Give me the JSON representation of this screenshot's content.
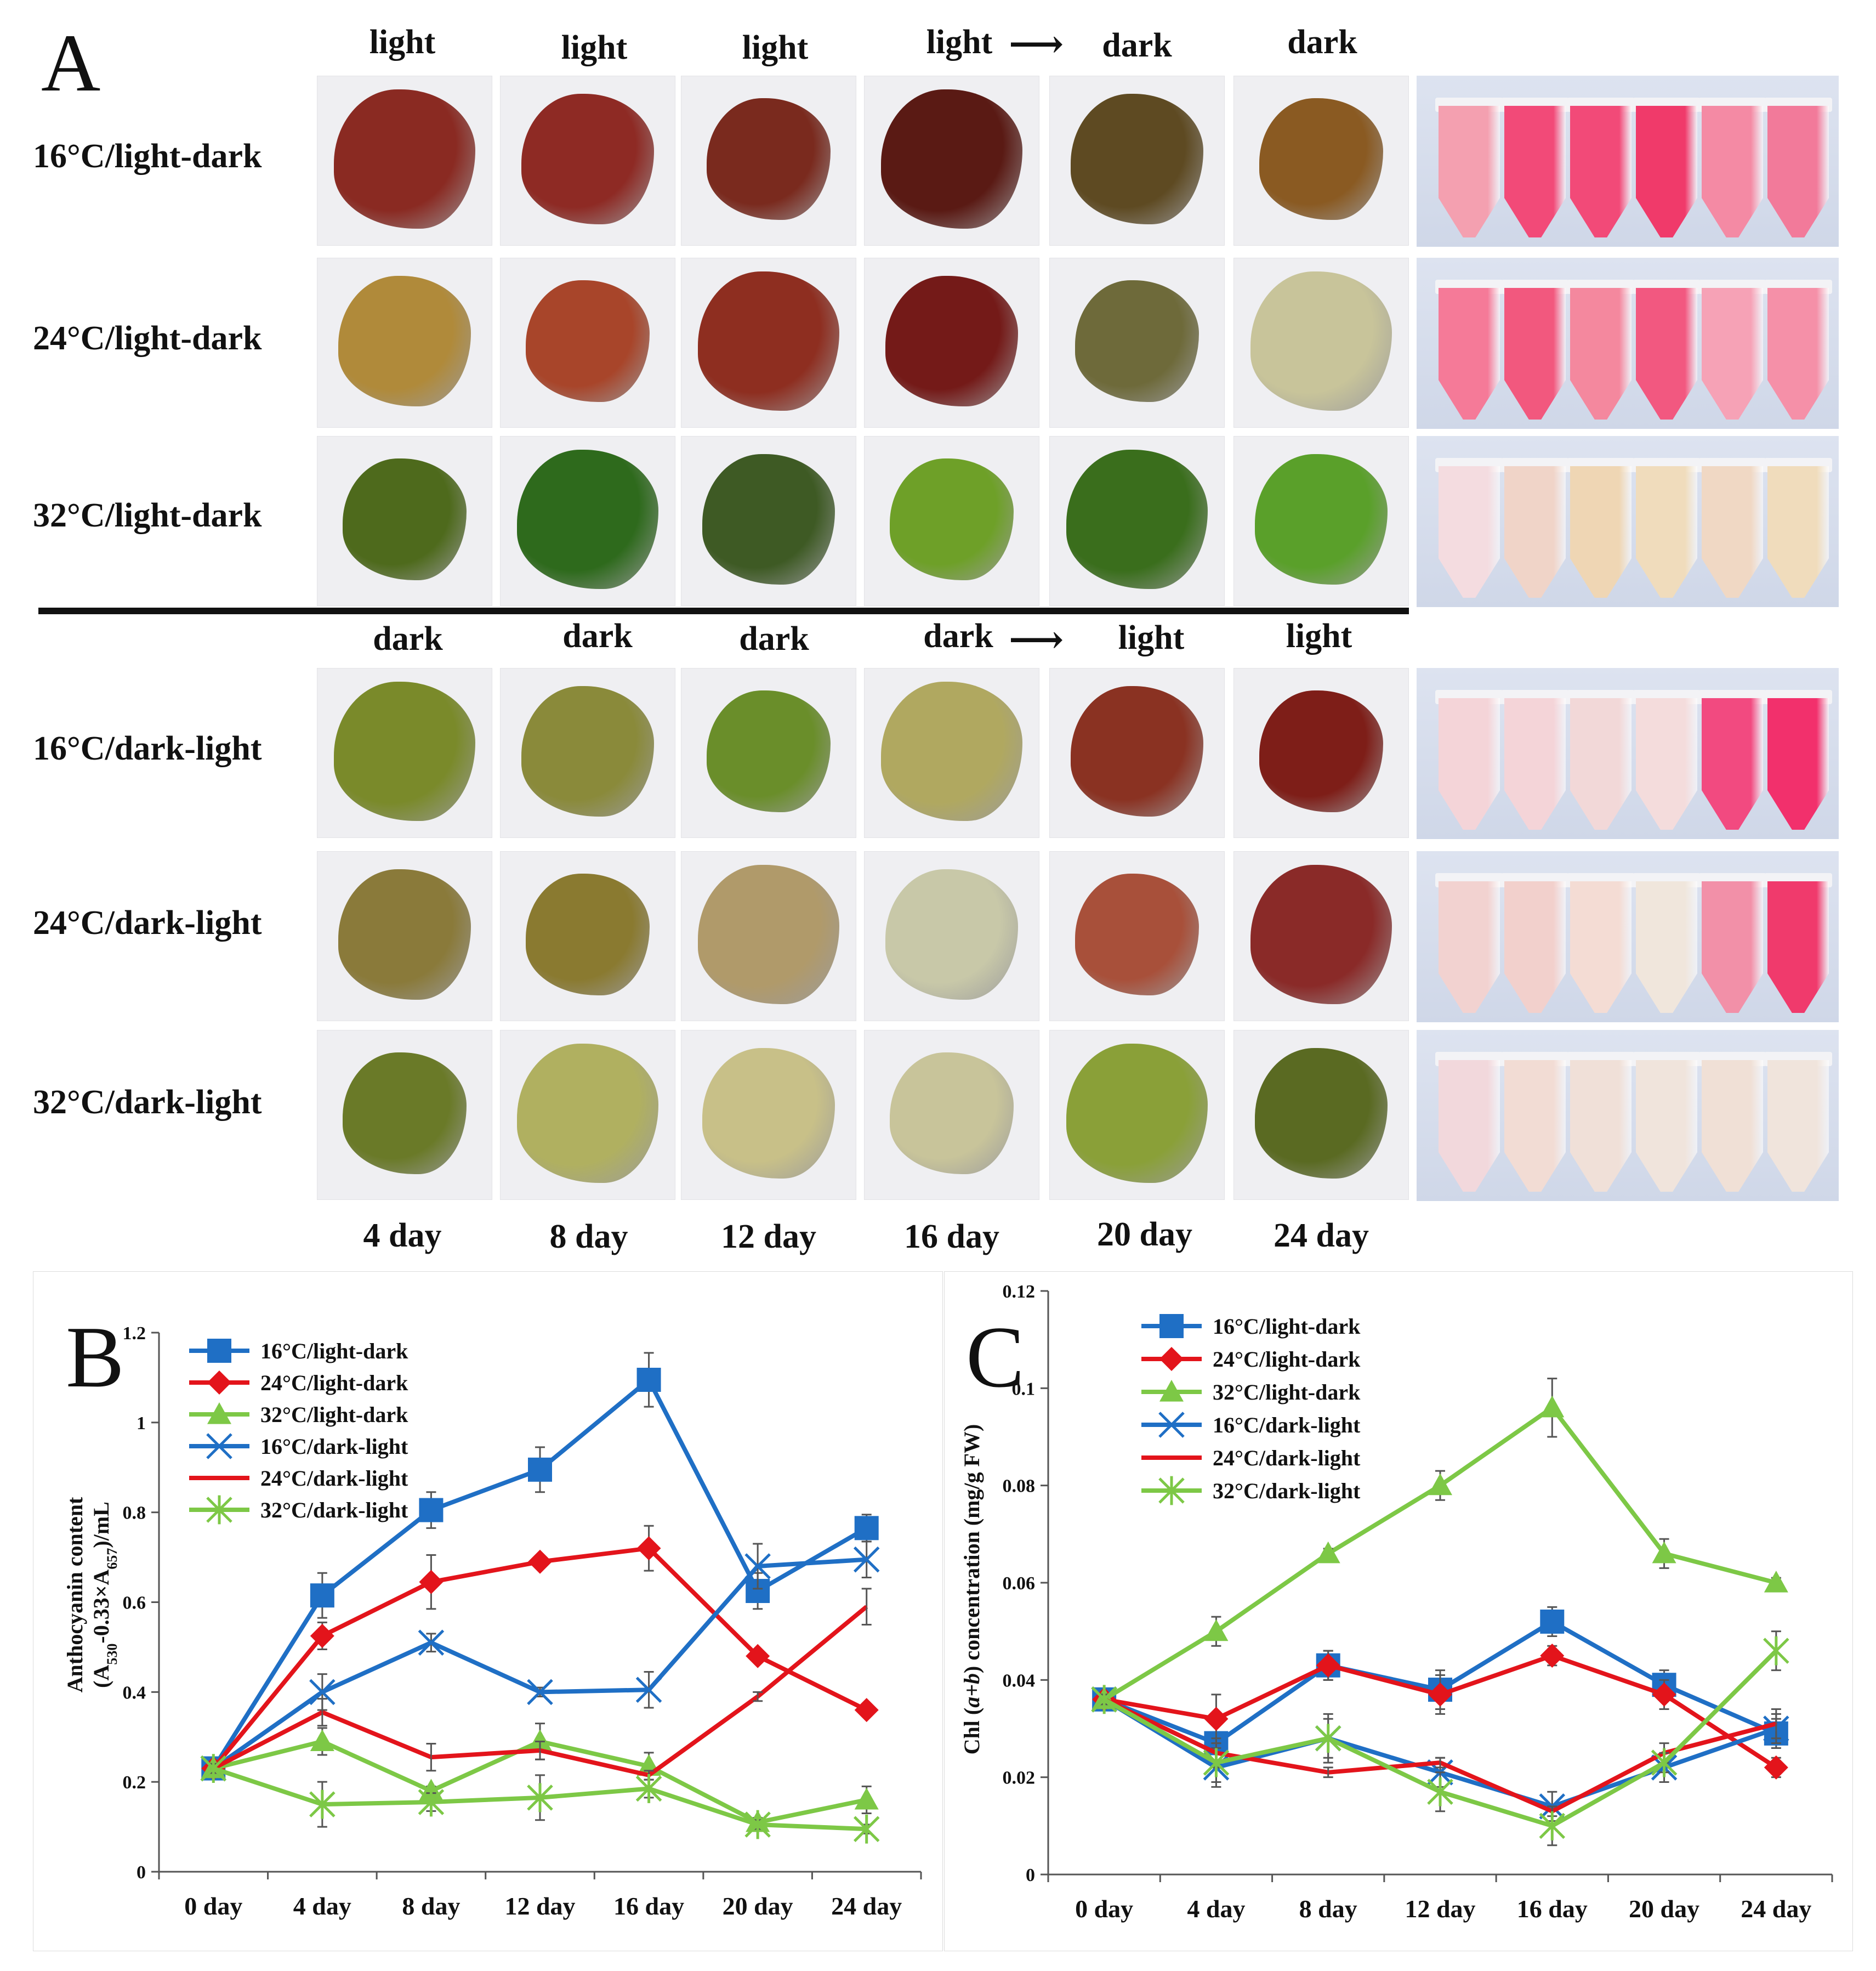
{
  "panel_a": {
    "letter": "A",
    "top_headers": [
      "light",
      "light",
      "light",
      "light",
      "dark",
      "dark"
    ],
    "bottom_headers": [
      "dark",
      "dark",
      "dark",
      "dark",
      "light",
      "light"
    ],
    "arrow": "⟶",
    "top_rows": [
      "16°C/light-dark",
      "24°C/light-dark",
      "32°C/light-dark"
    ],
    "bottom_rows": [
      "16°C/dark-light",
      "24°C/dark-light",
      "32°C/dark-light"
    ],
    "day_labels": [
      "4 day",
      "8 day",
      "12 day",
      "16 day",
      "20 day",
      "24 day"
    ],
    "callus_colors": [
      [
        "#8a2a22",
        "#8e2a24",
        "#7a2a1e",
        "#5a1a14",
        "#5e4a22",
        "#8a5a22"
      ],
      [
        "#b08a3a",
        "#a8452a",
        "#8e2e20",
        "#741a18",
        "#6e6a3a",
        "#c8c49a"
      ],
      [
        "#4e6a1c",
        "#2e6a1c",
        "#3e5a24",
        "#6ea028",
        "#3a6e1c",
        "#5aa02a"
      ],
      [
        "#7a8a2a",
        "#8a8a3a",
        "#6a8e2a",
        "#b0a860",
        "#8a3222",
        "#7e1e18"
      ],
      [
        "#8a7a3a",
        "#8a7a30",
        "#b09a6a",
        "#c8c8a8",
        "#a8503a",
        "#8a2a28"
      ],
      [
        "#6a7a28",
        "#b0b060",
        "#c8c088",
        "#c8c49a",
        "#8aa038",
        "#5a6a22"
      ]
    ],
    "tube_colors": [
      [
        "#f4a0b0",
        "#f24a78",
        "#f24a78",
        "#f03a6a",
        "#f48aa4",
        "#f27a9a"
      ],
      [
        "#f57a98",
        "#f2587e",
        "#f4889e",
        "#f25880",
        "#f6a2b6",
        "#f590a8"
      ],
      [
        "#f4dce0",
        "#f0d4c8",
        "#efd6b4",
        "#f0dcbc",
        "#f0d8c4",
        "#f0dcbc"
      ],
      [
        "#f4d4d8",
        "#f4d4d8",
        "#f2d8d8",
        "#f4dcdc",
        "#f24a80",
        "#f2306c"
      ],
      [
        "#f2d2d0",
        "#f2d0cc",
        "#f4dcd4",
        "#f0e6dc",
        "#f290a8",
        "#f03a6c"
      ],
      [
        "#f2d8dc",
        "#f2dcd4",
        "#f0e0d8",
        "#f0e4dc",
        "#f0e0d6",
        "#f0e4dc"
      ]
    ]
  },
  "chart_data": [
    {
      "panel": "B",
      "type": "line",
      "categories": [
        "0 day",
        "4 day",
        "8 day",
        "12 day",
        "16 day",
        "20 day",
        "24 day"
      ],
      "ylabel_line1": "Anthocyanin content",
      "ylabel_line2_parts": [
        "(A",
        "530",
        "-0.33×A",
        "657",
        ")/mL"
      ],
      "ylim": [
        0,
        1.2
      ],
      "yticks": [
        "0",
        "0.2",
        "0.4",
        "0.6",
        "0.8",
        "1",
        "1.2"
      ],
      "ytick_values": [
        0,
        0.2,
        0.4,
        0.6,
        0.8,
        1.0,
        1.2
      ],
      "legend_position": "top-left",
      "series": [
        {
          "name": "16°C/light-dark",
          "color": "#1f6fc5",
          "marker": "square",
          "values": [
            0.23,
            0.615,
            0.805,
            0.895,
            1.095,
            0.625,
            0.765
          ],
          "errors": [
            0.01,
            0.05,
            0.04,
            0.05,
            0.06,
            0.04,
            0.03
          ]
        },
        {
          "name": "24°C/light-dark",
          "color": "#e3141b",
          "marker": "diamond",
          "values": [
            0.23,
            0.525,
            0.645,
            0.69,
            0.72,
            0.48,
            0.36
          ],
          "errors": [
            0.01,
            0.03,
            0.06,
            0.01,
            0.05,
            0.01,
            0.01
          ]
        },
        {
          "name": "32°C/light-dark",
          "color": "#7dc846",
          "marker": "triangle",
          "values": [
            0.23,
            0.29,
            0.18,
            0.29,
            0.235,
            0.11,
            0.16
          ],
          "errors": [
            0.01,
            0.03,
            0.01,
            0.04,
            0.03,
            0.01,
            0.03
          ]
        },
        {
          "name": "16°C/dark-light",
          "color": "#1f6fc5",
          "marker": "x",
          "values": [
            0.23,
            0.4,
            0.51,
            0.4,
            0.405,
            0.68,
            0.695
          ],
          "errors": [
            0.01,
            0.04,
            0.02,
            0.01,
            0.04,
            0.05,
            0.04
          ]
        },
        {
          "name": "24°C/dark-light",
          "color": "#e3141b",
          "marker": "none",
          "values": [
            0.23,
            0.355,
            0.255,
            0.27,
            0.215,
            0.39,
            0.59
          ],
          "errors": [
            0.01,
            0.03,
            0.03,
            0.02,
            0.01,
            0.01,
            0.04
          ]
        },
        {
          "name": "32°C/dark-light",
          "color": "#7dc846",
          "marker": "asterisk",
          "values": [
            0.23,
            0.15,
            0.155,
            0.165,
            0.185,
            0.105,
            0.095
          ],
          "errors": [
            0.01,
            0.05,
            0.02,
            0.05,
            0.02,
            0.01,
            0.01
          ]
        }
      ]
    },
    {
      "panel": "C",
      "type": "line",
      "categories": [
        "0 day",
        "4 day",
        "8 day",
        "12 day",
        "16 day",
        "20 day",
        "24 day"
      ],
      "ylabel_parts": [
        "Chl (",
        "a+b",
        ") concentration (mg/g FW)"
      ],
      "ylim": [
        0,
        0.12
      ],
      "yticks": [
        "0",
        "0.02",
        "0.04",
        "0.06",
        "0.08",
        "0.1",
        "0.12"
      ],
      "ytick_values": [
        0,
        0.02,
        0.04,
        0.06,
        0.08,
        0.1,
        0.12
      ],
      "legend_position": "top-left",
      "series": [
        {
          "name": "16°C/light-dark",
          "color": "#1f6fc5",
          "marker": "square",
          "values": [
            0.036,
            0.027,
            0.043,
            0.038,
            0.052,
            0.039,
            0.029
          ],
          "errors": [
            0.001,
            0.004,
            0.003,
            0.004,
            0.003,
            0.003,
            0.003
          ]
        },
        {
          "name": "24°C/light-dark",
          "color": "#e3141b",
          "marker": "diamond",
          "values": [
            0.036,
            0.032,
            0.043,
            0.037,
            0.045,
            0.037,
            0.022
          ],
          "errors": [
            0.001,
            0.005,
            0.003,
            0.004,
            0.002,
            0.003,
            0.002
          ]
        },
        {
          "name": "32°C/light-dark",
          "color": "#7dc846",
          "marker": "triangle",
          "values": [
            0.036,
            0.05,
            0.066,
            0.08,
            0.096,
            0.066,
            0.06
          ],
          "errors": [
            0.001,
            0.003,
            0.001,
            0.003,
            0.006,
            0.003,
            0.001
          ]
        },
        {
          "name": "16°C/dark-light",
          "color": "#1f6fc5",
          "marker": "x",
          "values": [
            0.036,
            0.022,
            0.028,
            0.021,
            0.014,
            0.022,
            0.03
          ],
          "errors": [
            0.001,
            0.004,
            0.004,
            0.003,
            0.003,
            0.003,
            0.003
          ]
        },
        {
          "name": "24°C/dark-light",
          "color": "#e3141b",
          "marker": "none",
          "values": [
            0.036,
            0.025,
            0.021,
            0.023,
            0.013,
            0.025,
            0.031
          ],
          "errors": [
            0.001,
            0.003,
            0.001,
            0.001,
            0.001,
            0.002,
            0.003
          ]
        },
        {
          "name": "32°C/dark-light",
          "color": "#7dc846",
          "marker": "asterisk",
          "values": [
            0.036,
            0.023,
            0.028,
            0.017,
            0.01,
            0.023,
            0.046
          ],
          "errors": [
            0.001,
            0.004,
            0.005,
            0.004,
            0.004,
            0.002,
            0.004
          ]
        }
      ]
    }
  ]
}
